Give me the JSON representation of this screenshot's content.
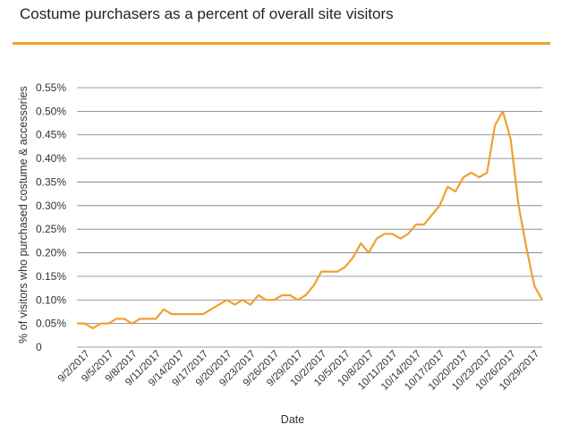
{
  "title": "Costume purchasers as a percent of overall site visitors",
  "colors": {
    "accent": "#f0a030",
    "line": "#f0a030",
    "grid": "#7a7a7a",
    "text": "#333333"
  },
  "chart_data": {
    "type": "line",
    "xlabel": "Date",
    "ylabel": "% of visitors who purchased costume & accessories",
    "ylim": [
      0,
      0.55
    ],
    "grid": "horizontal",
    "y_ticks": [
      0,
      0.05,
      0.1,
      0.15,
      0.2,
      0.25,
      0.3,
      0.35,
      0.4,
      0.45,
      0.5,
      0.55
    ],
    "y_tick_labels": [
      "0",
      "0.05%",
      "0.10%",
      "0.15%",
      "0.20%",
      "0.25%",
      "0.30%",
      "0.35%",
      "0.40%",
      "0.45%",
      "0.50%",
      "0.55%"
    ],
    "x_tick_labels": [
      "9/2/2017",
      "9/5/2017",
      "9/8/2017",
      "9/11/2017",
      "9/14/2017",
      "9/17/2017",
      "9/20/2017",
      "9/23/2017",
      "9/26/2017",
      "9/29/2017",
      "10/2/2017",
      "10/5/2017",
      "10/8/2017",
      "10/11/2017",
      "10/14/2017",
      "10/17/2017",
      "10/20/2017",
      "10/23/2017",
      "10/26/2017",
      "10/29/2017"
    ],
    "x": [
      "9/1/2017",
      "9/2/2017",
      "9/3/2017",
      "9/4/2017",
      "9/5/2017",
      "9/6/2017",
      "9/7/2017",
      "9/8/2017",
      "9/9/2017",
      "9/10/2017",
      "9/11/2017",
      "9/12/2017",
      "9/13/2017",
      "9/14/2017",
      "9/15/2017",
      "9/16/2017",
      "9/17/2017",
      "9/18/2017",
      "9/19/2017",
      "9/20/2017",
      "9/21/2017",
      "9/22/2017",
      "9/23/2017",
      "9/24/2017",
      "9/25/2017",
      "9/26/2017",
      "9/27/2017",
      "9/28/2017",
      "9/29/2017",
      "9/30/2017",
      "10/1/2017",
      "10/2/2017",
      "10/3/2017",
      "10/4/2017",
      "10/5/2017",
      "10/6/2017",
      "10/7/2017",
      "10/8/2017",
      "10/9/2017",
      "10/10/2017",
      "10/11/2017",
      "10/12/2017",
      "10/13/2017",
      "10/14/2017",
      "10/15/2017",
      "10/16/2017",
      "10/17/2017",
      "10/18/2017",
      "10/19/2017",
      "10/20/2017",
      "10/21/2017",
      "10/22/2017",
      "10/23/2017",
      "10/24/2017",
      "10/25/2017",
      "10/26/2017",
      "10/27/2017",
      "10/28/2017",
      "10/29/2017",
      "10/30/2017"
    ],
    "values": [
      0.05,
      0.05,
      0.04,
      0.05,
      0.05,
      0.06,
      0.06,
      0.05,
      0.06,
      0.06,
      0.06,
      0.08,
      0.07,
      0.07,
      0.07,
      0.07,
      0.07,
      0.08,
      0.09,
      0.1,
      0.09,
      0.1,
      0.09,
      0.11,
      0.1,
      0.1,
      0.11,
      0.11,
      0.1,
      0.11,
      0.13,
      0.16,
      0.16,
      0.16,
      0.17,
      0.19,
      0.22,
      0.2,
      0.23,
      0.24,
      0.24,
      0.23,
      0.24,
      0.26,
      0.26,
      0.28,
      0.3,
      0.34,
      0.33,
      0.36,
      0.37,
      0.36,
      0.37,
      0.47,
      0.5,
      0.44,
      0.3,
      0.21,
      0.13,
      0.1
    ]
  }
}
